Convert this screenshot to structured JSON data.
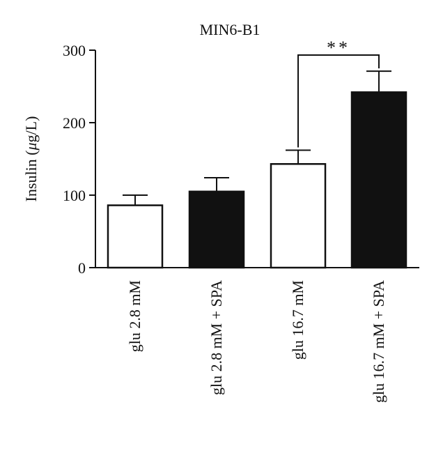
{
  "chart_data": {
    "type": "bar",
    "title": "MIN6-B1",
    "xlabel": "",
    "ylabel": "Insulin (μg/L)",
    "ylabel_parts": {
      "pre": "Insulin (",
      "mu": "μ",
      "post": "g/L)"
    },
    "ylim": [
      0,
      300
    ],
    "yticks": [
      "0",
      "100",
      "200",
      "300"
    ],
    "categories": [
      "glu 2.8 mM",
      "glu 2.8 mM + SPA",
      "glu 16.7 mM",
      "glu 16.7 mM + SPA"
    ],
    "values": [
      86,
      105,
      143,
      242
    ],
    "errors": [
      14,
      19,
      19,
      29
    ],
    "bar_fill": [
      "#ffffff",
      "#111111",
      "#ffffff",
      "#111111"
    ],
    "significance": {
      "from": 2,
      "to": 3,
      "label": "**"
    },
    "grid": false,
    "legend": "none"
  }
}
